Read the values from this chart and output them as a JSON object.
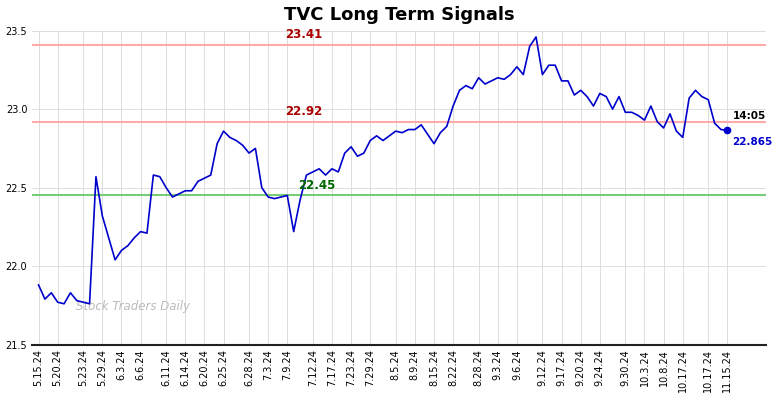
{
  "title": "TVC Long Term Signals",
  "watermark": "Stock Traders Daily",
  "hline_red1": 23.41,
  "hline_red2": 22.92,
  "hline_green": 22.45,
  "ylim": [
    21.5,
    23.5
  ],
  "yticks": [
    21.5,
    22.0,
    22.5,
    23.0,
    23.5
  ],
  "last_label_time": "14:05",
  "last_label_price": "22.865",
  "x_labels": [
    "5.15.24",
    "5.20.24",
    "5.23.24",
    "5.29.24",
    "6.3.24",
    "6.6.24",
    "6.11.24",
    "6.14.24",
    "6.20.24",
    "6.25.24",
    "6.28.24",
    "7.3.24",
    "7.9.24",
    "7.12.24",
    "7.17.24",
    "7.23.24",
    "7.29.24",
    "8.5.24",
    "8.9.24",
    "8.15.24",
    "8.22.24",
    "8.28.24",
    "9.3.24",
    "9.6.24",
    "9.12.24",
    "9.17.24",
    "9.20.24",
    "9.24.24",
    "9.30.24",
    "10.3.24",
    "10.8.24",
    "10.17.24",
    "10.17.24",
    "11.15.24"
  ],
  "prices": [
    21.88,
    21.79,
    21.83,
    21.77,
    21.76,
    21.83,
    21.78,
    21.77,
    21.76,
    22.57,
    22.32,
    22.18,
    22.04,
    22.1,
    22.13,
    22.18,
    22.22,
    22.21,
    22.58,
    22.57,
    22.5,
    22.44,
    22.46,
    22.48,
    22.48,
    22.54,
    22.56,
    22.58,
    22.78,
    22.86,
    22.82,
    22.8,
    22.77,
    22.72,
    22.75,
    22.5,
    22.44,
    22.43,
    22.44,
    22.45,
    22.22,
    22.42,
    22.58,
    22.6,
    22.62,
    22.58,
    22.62,
    22.6,
    22.72,
    22.76,
    22.7,
    22.72,
    22.8,
    22.83,
    22.8,
    22.83,
    22.86,
    22.85,
    22.87,
    22.87,
    22.9,
    22.84,
    22.78,
    22.85,
    22.89,
    23.02,
    23.12,
    23.15,
    23.13,
    23.2,
    23.16,
    23.18,
    23.2,
    23.19,
    23.22,
    23.27,
    23.22,
    23.4,
    23.46,
    23.22,
    23.28,
    23.28,
    23.18,
    23.18,
    23.09,
    23.12,
    23.08,
    23.02,
    23.1,
    23.08,
    23.0,
    23.08,
    22.98,
    22.98,
    22.96,
    22.93,
    23.02,
    22.92,
    22.88,
    22.97,
    22.86,
    22.82,
    23.07,
    23.12,
    23.08,
    23.06,
    22.91,
    22.87,
    22.865
  ],
  "line_color": "#0000cc",
  "hline_red_color": "#ffaaaa",
  "hline_green_color": "#77cc77",
  "annotation_red_color": "#aa0000",
  "annotation_green_color": "#006600",
  "annotation_blue_color": "#0000cc",
  "bg_color": "#ffffff",
  "grid_color": "#dddddd",
  "title_fontsize": 13,
  "tick_fontsize": 7,
  "watermark_color": "#bbbbbb"
}
